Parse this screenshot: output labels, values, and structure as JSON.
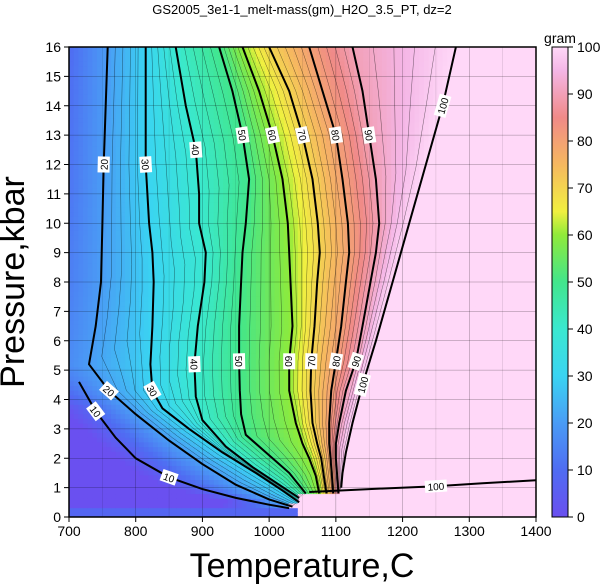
{
  "chart_data": {
    "type": "heatmap",
    "title": "GS2005_3e1-1_melt-mass(gm)_H2O_3.5_PT, dz=2",
    "xlabel": "Temperature,C",
    "ylabel": "Pressure,kbar",
    "xlim": [
      700,
      1400
    ],
    "ylim": [
      0,
      16
    ],
    "x_ticks": [
      "700",
      "800",
      "900",
      "1000",
      "1100",
      "1200",
      "1300",
      "1400"
    ],
    "y_ticks": [
      "0",
      "1",
      "2",
      "3",
      "4",
      "5",
      "6",
      "7",
      "8",
      "9",
      "10",
      "11",
      "12",
      "13",
      "14",
      "15",
      "16"
    ],
    "grid": true,
    "colorbar": {
      "label": "gram",
      "range": [
        0,
        100
      ],
      "ticks": [
        "0",
        "10",
        "20",
        "30",
        "40",
        "50",
        "60",
        "70",
        "80",
        "90",
        "100"
      ],
      "placement": "right"
    },
    "contour_interval": 2,
    "labeled_contour_interval": 10,
    "contours": [
      {
        "level": 10,
        "label": "10",
        "points": [
          [
            715,
            4.6
          ],
          [
            740,
            3.6
          ],
          [
            770,
            2.7
          ],
          [
            800,
            2.0
          ],
          [
            850,
            1.35
          ],
          [
            900,
            0.95
          ],
          [
            950,
            0.65
          ],
          [
            1000,
            0.42
          ],
          [
            1030,
            0.3
          ]
        ]
      },
      {
        "level": 20,
        "label": "20",
        "points": [
          [
            758,
            16
          ],
          [
            755,
            14
          ],
          [
            752,
            12
          ],
          [
            750,
            10
          ],
          [
            748,
            8
          ],
          [
            740,
            6.5
          ],
          [
            730,
            5.2
          ],
          [
            760,
            4.3
          ],
          [
            800,
            3.5
          ],
          [
            850,
            2.6
          ],
          [
            900,
            1.8
          ],
          [
            950,
            1.1
          ],
          [
            1000,
            0.6
          ],
          [
            1035,
            0.35
          ]
        ]
      },
      {
        "level": 30,
        "label": "30",
        "points": [
          [
            815,
            16
          ],
          [
            815,
            14
          ],
          [
            815,
            12
          ],
          [
            820,
            10
          ],
          [
            825,
            9
          ],
          [
            827,
            8
          ],
          [
            825,
            6.5
          ],
          [
            822,
            5.2
          ],
          [
            825,
            4.3
          ],
          [
            840,
            3.7
          ],
          [
            880,
            3.0
          ],
          [
            930,
            2.2
          ],
          [
            980,
            1.5
          ],
          [
            1020,
            0.9
          ],
          [
            1045,
            0.5
          ]
        ]
      },
      {
        "level": 40,
        "label": "40",
        "points": [
          [
            860,
            16
          ],
          [
            875,
            14
          ],
          [
            890,
            12.5
          ],
          [
            895,
            11
          ],
          [
            895,
            10
          ],
          [
            905,
            9
          ],
          [
            903,
            8
          ],
          [
            893,
            6.5
          ],
          [
            888,
            5.2
          ],
          [
            890,
            4.1
          ],
          [
            900,
            3.3
          ],
          [
            935,
            2.4
          ],
          [
            975,
            1.7
          ],
          [
            1015,
            1.1
          ],
          [
            1045,
            0.65
          ]
        ]
      },
      {
        "level": 50,
        "label": "50",
        "points": [
          [
            925,
            16
          ],
          [
            945,
            14.5
          ],
          [
            960,
            13
          ],
          [
            970,
            11.5
          ],
          [
            965,
            10
          ],
          [
            960,
            9
          ],
          [
            958,
            8
          ],
          [
            955,
            6.5
          ],
          [
            955,
            5.3
          ],
          [
            956,
            4.3
          ],
          [
            958,
            3.5
          ],
          [
            965,
            2.8
          ],
          [
            1000,
            2.1
          ],
          [
            1030,
            1.5
          ],
          [
            1055,
            0.8
          ]
        ]
      },
      {
        "level": 60,
        "label": "60",
        "points": [
          [
            960,
            16
          ],
          [
            985,
            14.5
          ],
          [
            1005,
            13
          ],
          [
            1020,
            11.5
          ],
          [
            1028,
            10
          ],
          [
            1030,
            9
          ],
          [
            1032,
            8
          ],
          [
            1035,
            6.5
          ],
          [
            1030,
            5.3
          ],
          [
            1030,
            4.3
          ],
          [
            1040,
            3.2
          ],
          [
            1050,
            2.5
          ],
          [
            1060,
            2.0
          ],
          [
            1070,
            1.4
          ],
          [
            1075,
            0.8
          ]
        ]
      },
      {
        "level": 70,
        "label": "70",
        "points": [
          [
            1000,
            16
          ],
          [
            1030,
            14.5
          ],
          [
            1050,
            13
          ],
          [
            1065,
            11.5
          ],
          [
            1073,
            10
          ],
          [
            1076,
            9
          ],
          [
            1072,
            8
          ],
          [
            1068,
            6.5
          ],
          [
            1063,
            5.3
          ],
          [
            1062,
            4.3
          ],
          [
            1065,
            3.2
          ],
          [
            1072,
            2.5
          ],
          [
            1078,
            2.0
          ],
          [
            1082,
            1.4
          ],
          [
            1086,
            0.8
          ]
        ]
      },
      {
        "level": 80,
        "label": "80",
        "points": [
          [
            1060,
            16
          ],
          [
            1080,
            14.5
          ],
          [
            1100,
            13
          ],
          [
            1110,
            11.5
          ],
          [
            1118,
            10
          ],
          [
            1120,
            9
          ],
          [
            1115,
            8
          ],
          [
            1108,
            6.5
          ],
          [
            1100,
            5.3
          ],
          [
            1093,
            4.3
          ],
          [
            1090,
            3.2
          ],
          [
            1090,
            2.5
          ],
          [
            1092,
            2.0
          ],
          [
            1094,
            1.4
          ],
          [
            1096,
            0.8
          ]
        ]
      },
      {
        "level": 90,
        "label": "90",
        "points": [
          [
            1125,
            16
          ],
          [
            1140,
            14.5
          ],
          [
            1150,
            13
          ],
          [
            1160,
            11.5
          ],
          [
            1165,
            10
          ],
          [
            1160,
            9
          ],
          [
            1152,
            8
          ],
          [
            1140,
            6.5
          ],
          [
            1130,
            5.3
          ],
          [
            1115,
            4.3
          ],
          [
            1105,
            3.2
          ],
          [
            1100,
            2.5
          ],
          [
            1100,
            2.0
          ],
          [
            1102,
            1.4
          ],
          [
            1104,
            0.8
          ]
        ]
      },
      {
        "level": 100,
        "label": "100",
        "points": [
          [
            1280,
            16
          ],
          [
            1260,
            14
          ],
          [
            1235,
            12
          ],
          [
            1210,
            10
          ],
          [
            1185,
            8
          ],
          [
            1160,
            6
          ],
          [
            1140,
            4.5
          ],
          [
            1125,
            3.2
          ],
          [
            1115,
            2.2
          ],
          [
            1110,
            1.5
          ],
          [
            1108,
            1.0
          ]
        ]
      },
      {
        "level": 100,
        "label": "100",
        "points": [
          [
            1060,
            0.85
          ],
          [
            1150,
            0.95
          ],
          [
            1250,
            1.05
          ],
          [
            1320,
            1.15
          ],
          [
            1400,
            1.25
          ]
        ]
      }
    ]
  }
}
